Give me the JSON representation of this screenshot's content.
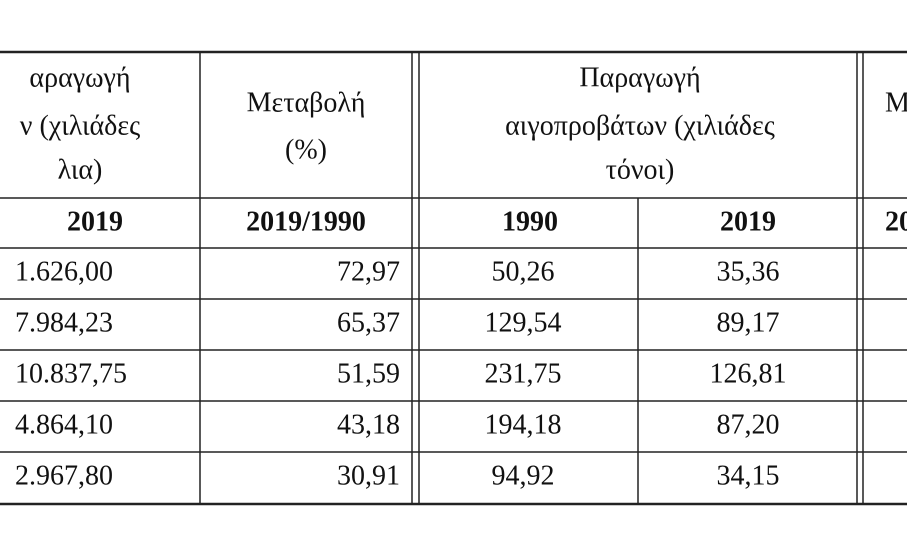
{
  "table": {
    "header": {
      "col0": [
        "αραγωγή",
        "ν (χιλιάδες",
        "λια)"
      ],
      "col1": [
        "Μεταβολή",
        "(%)"
      ],
      "group": [
        "Παραγωγή",
        "αιγοπροβάτων (χιλιάδες",
        "τόνοι)"
      ],
      "col4": "M"
    },
    "subheader": [
      "2019",
      "2019/1990",
      "1990",
      "2019",
      "20"
    ],
    "rows": [
      [
        "1.626,00",
        "72,97",
        "50,26",
        "35,36"
      ],
      [
        "7.984,23",
        "65,37",
        "129,54",
        "89,17"
      ],
      [
        "10.837,75",
        "51,59",
        "231,75",
        "126,81"
      ],
      [
        "4.864,10",
        "43,18",
        "194,18",
        "87,20"
      ],
      [
        "2.967,80",
        "30,91",
        "94,92",
        "34,15"
      ]
    ]
  }
}
